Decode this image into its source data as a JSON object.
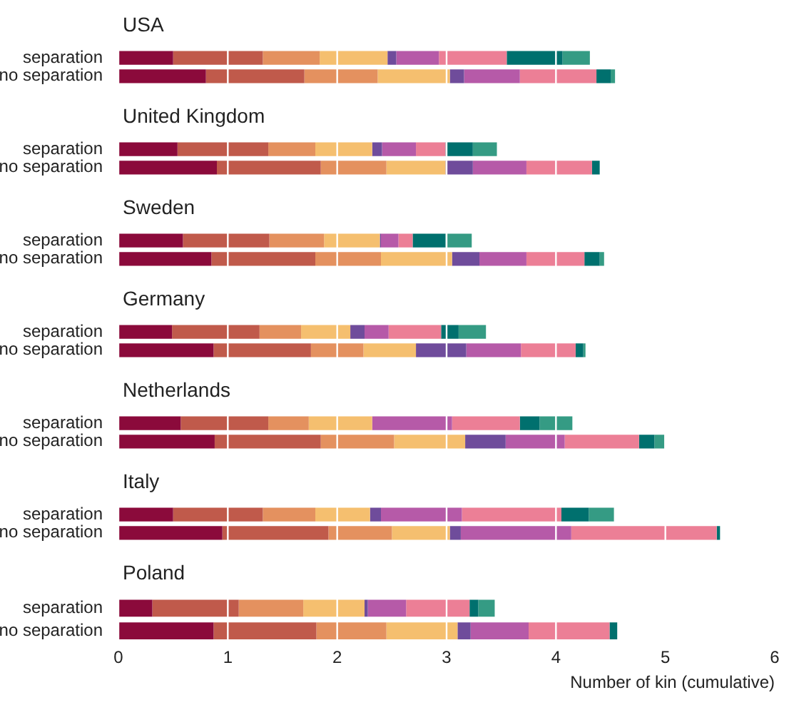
{
  "chart_data": [
    {
      "type": "bar",
      "title": "USA",
      "orientation": "horizontal",
      "stacked": true,
      "grid": "x",
      "tick_labels": "y",
      "xlim": [
        0,
        6
      ],
      "xticks": [
        0,
        1,
        2,
        3,
        4,
        5,
        6
      ],
      "categories": [
        "separation",
        "no separation"
      ],
      "series": [
        {
          "color": "#8b0a3b",
          "values": [
            0.5,
            0.8
          ]
        },
        {
          "color": "#c05a4b",
          "values": [
            0.82,
            0.9
          ]
        },
        {
          "color": "#e4915f",
          "values": [
            0.52,
            0.67
          ]
        },
        {
          "color": "#f5bf6f",
          "values": [
            0.62,
            0.66
          ]
        },
        {
          "color": "#6f4c9b",
          "values": [
            0.08,
            0.13
          ]
        },
        {
          "color": "#b65aa8",
          "values": [
            0.39,
            0.51
          ]
        },
        {
          "color": "#ec7f96",
          "values": [
            0.62,
            0.7
          ]
        },
        {
          "color": "#00706e",
          "values": [
            0.51,
            0.13
          ]
        },
        {
          "color": "#359b84",
          "values": [
            0.25,
            0.04
          ]
        }
      ]
    },
    {
      "type": "bar",
      "title": "United Kingdom",
      "orientation": "horizontal",
      "stacked": true,
      "grid": "x",
      "tick_labels": "y",
      "xlim": [
        0,
        6
      ],
      "xticks": [
        0,
        1,
        2,
        3,
        4,
        5,
        6
      ],
      "categories": [
        "separation",
        "no separation"
      ],
      "series": [
        {
          "color": "#8b0a3b",
          "values": [
            0.54,
            0.9
          ]
        },
        {
          "color": "#c05a4b",
          "values": [
            0.83,
            0.95
          ]
        },
        {
          "color": "#e4915f",
          "values": [
            0.43,
            0.6
          ]
        },
        {
          "color": "#f5bf6f",
          "values": [
            0.52,
            0.54
          ]
        },
        {
          "color": "#6f4c9b",
          "values": [
            0.09,
            0.25
          ]
        },
        {
          "color": "#b65aa8",
          "values": [
            0.31,
            0.49
          ]
        },
        {
          "color": "#ec7f96",
          "values": [
            0.27,
            0.6
          ]
        },
        {
          "color": "#00706e",
          "values": [
            0.25,
            0.07
          ]
        },
        {
          "color": "#359b84",
          "values": [
            0.22,
            0
          ]
        }
      ]
    },
    {
      "type": "bar",
      "title": "Sweden",
      "orientation": "horizontal",
      "stacked": true,
      "grid": "x",
      "tick_labels": "y",
      "xlim": [
        0,
        6
      ],
      "xticks": [
        0,
        1,
        2,
        3,
        4,
        5,
        6
      ],
      "categories": [
        "separation",
        "no separation"
      ],
      "series": [
        {
          "color": "#8b0a3b",
          "values": [
            0.59,
            0.85
          ]
        },
        {
          "color": "#c05a4b",
          "values": [
            0.79,
            0.95
          ]
        },
        {
          "color": "#e4915f",
          "values": [
            0.5,
            0.6
          ]
        },
        {
          "color": "#f5bf6f",
          "values": [
            0.51,
            0.65
          ]
        },
        {
          "color": "#6f4c9b",
          "values": [
            0.01,
            0.25
          ]
        },
        {
          "color": "#b65aa8",
          "values": [
            0.16,
            0.43
          ]
        },
        {
          "color": "#ec7f96",
          "values": [
            0.13,
            0.53
          ]
        },
        {
          "color": "#00706e",
          "values": [
            0.3,
            0.14
          ]
        },
        {
          "color": "#359b84",
          "values": [
            0.24,
            0.04
          ]
        }
      ]
    },
    {
      "type": "bar",
      "title": "Germany",
      "orientation": "horizontal",
      "stacked": true,
      "grid": "x",
      "tick_labels": "y",
      "xlim": [
        0,
        6
      ],
      "xticks": [
        0,
        1,
        2,
        3,
        4,
        5,
        6
      ],
      "categories": [
        "separation",
        "no separation"
      ],
      "series": [
        {
          "color": "#8b0a3b",
          "values": [
            0.49,
            0.87
          ]
        },
        {
          "color": "#c05a4b",
          "values": [
            0.8,
            0.89
          ]
        },
        {
          "color": "#e4915f",
          "values": [
            0.38,
            0.48
          ]
        },
        {
          "color": "#f5bf6f",
          "values": [
            0.45,
            0.48
          ]
        },
        {
          "color": "#6f4c9b",
          "values": [
            0.13,
            0.46
          ]
        },
        {
          "color": "#b65aa8",
          "values": [
            0.22,
            0.5
          ]
        },
        {
          "color": "#ec7f96",
          "values": [
            0.48,
            0.5
          ]
        },
        {
          "color": "#00706e",
          "values": [
            0.16,
            0.07
          ]
        },
        {
          "color": "#359b84",
          "values": [
            0.25,
            0.02
          ]
        }
      ]
    },
    {
      "type": "bar",
      "title": "Netherlands",
      "orientation": "horizontal",
      "stacked": true,
      "grid": "x",
      "tick_labels": "y",
      "xlim": [
        0,
        6
      ],
      "xticks": [
        0,
        1,
        2,
        3,
        4,
        5,
        6
      ],
      "categories": [
        "separation",
        "no separation"
      ],
      "series": [
        {
          "color": "#8b0a3b",
          "values": [
            0.57,
            0.88
          ]
        },
        {
          "color": "#c05a4b",
          "values": [
            0.8,
            0.97
          ]
        },
        {
          "color": "#e4915f",
          "values": [
            0.37,
            0.67
          ]
        },
        {
          "color": "#f5bf6f",
          "values": [
            0.58,
            0.65
          ]
        },
        {
          "color": "#6f4c9b",
          "values": [
            0,
            0.37
          ]
        },
        {
          "color": "#b65aa8",
          "values": [
            0.73,
            0.54
          ]
        },
        {
          "color": "#ec7f96",
          "values": [
            0.62,
            0.68
          ]
        },
        {
          "color": "#00706e",
          "values": [
            0.18,
            0.14
          ]
        },
        {
          "color": "#359b84",
          "values": [
            0.3,
            0.09
          ]
        }
      ]
    },
    {
      "type": "bar",
      "title": "Italy",
      "orientation": "horizontal",
      "stacked": true,
      "grid": "x",
      "tick_labels": "y",
      "xlim": [
        0,
        6
      ],
      "xticks": [
        0,
        1,
        2,
        3,
        4,
        5,
        6
      ],
      "categories": [
        "separation",
        "no separation"
      ],
      "series": [
        {
          "color": "#8b0a3b",
          "values": [
            0.5,
            0.95
          ]
        },
        {
          "color": "#c05a4b",
          "values": [
            0.82,
            0.97
          ]
        },
        {
          "color": "#e4915f",
          "values": [
            0.48,
            0.58
          ]
        },
        {
          "color": "#f5bf6f",
          "values": [
            0.5,
            0.53
          ]
        },
        {
          "color": "#6f4c9b",
          "values": [
            0.1,
            0.1
          ]
        },
        {
          "color": "#b65aa8",
          "values": [
            0.74,
            1.01
          ]
        },
        {
          "color": "#ec7f96",
          "values": [
            0.91,
            1.33
          ]
        },
        {
          "color": "#00706e",
          "values": [
            0.25,
            0.03
          ]
        },
        {
          "color": "#359b84",
          "values": [
            0.23,
            0
          ]
        }
      ]
    },
    {
      "type": "bar",
      "title": "Poland",
      "xlabel": "Number of kin (cumulative)",
      "orientation": "horizontal",
      "stacked": true,
      "grid": "x",
      "xlim": [
        0,
        6
      ],
      "xticks": [
        0,
        1,
        2,
        3,
        4,
        5,
        6
      ],
      "categories": [
        "separation",
        "no separation"
      ],
      "series": [
        {
          "color": "#8b0a3b",
          "values": [
            0.31,
            0.87
          ]
        },
        {
          "color": "#c05a4b",
          "values": [
            0.79,
            0.94
          ]
        },
        {
          "color": "#e4915f",
          "values": [
            0.59,
            0.64
          ]
        },
        {
          "color": "#f5bf6f",
          "values": [
            0.56,
            0.65
          ]
        },
        {
          "color": "#6f4c9b",
          "values": [
            0.03,
            0.12
          ]
        },
        {
          "color": "#b65aa8",
          "values": [
            0.35,
            0.53
          ]
        },
        {
          "color": "#ec7f96",
          "values": [
            0.58,
            0.74
          ]
        },
        {
          "color": "#00706e",
          "values": [
            0.08,
            0.07
          ]
        },
        {
          "color": "#359b84",
          "values": [
            0.15,
            0
          ]
        }
      ]
    }
  ]
}
